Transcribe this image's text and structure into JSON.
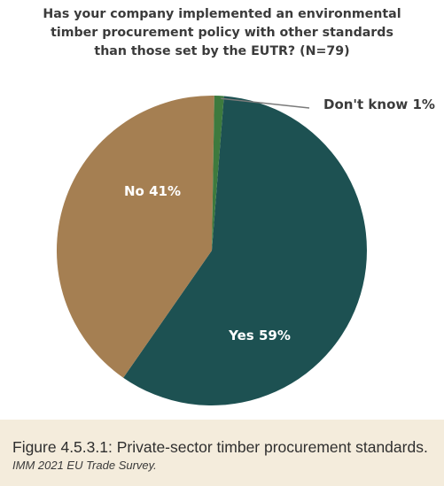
{
  "chart_data": {
    "type": "pie",
    "title_lines": [
      "Has your company implemented an environmental",
      "timber procurement policy with other standards",
      "than those set by the EUTR? (N=79)"
    ],
    "slices": [
      {
        "label": "Yes 59%",
        "value": 59,
        "color": "#1d5152"
      },
      {
        "label": "No 41%",
        "value": 41,
        "color": "#a57f52"
      },
      {
        "label": "Don't know 1%",
        "value": 1,
        "color": "#3d7a3e"
      }
    ]
  },
  "caption": {
    "figure_title": "Figure 4.5.3.1: Private-sector timber procurement standards.",
    "source": "IMM 2021 EU Trade Survey."
  },
  "colors": {
    "title_text": "#3b3b3b",
    "caption_background": "#f4ecdc",
    "slice_label_light": "#ffffff",
    "callout_label": "#3b3b3b",
    "leader_line": "#7a7a7a"
  }
}
